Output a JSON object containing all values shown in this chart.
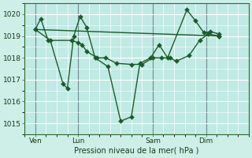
{
  "xlabel": "Pression niveau de la mer( hPa )",
  "ylim": [
    1014.5,
    1020.5
  ],
  "xlim": [
    0,
    10.5
  ],
  "bg_color": "#ceeee8",
  "plot_bg_color": "#c0eae4",
  "grid_color": "#ffffff",
  "line_color": "#1a5c2a",
  "day_labels": [
    "Ven",
    "Lun",
    "Sam",
    "Dim"
  ],
  "yticks": [
    1015,
    1016,
    1017,
    1018,
    1019,
    1020
  ],
  "series1_x": [
    0.5,
    0.75,
    1.1,
    2.2,
    2.5,
    2.7,
    2.9,
    3.4,
    3.8,
    4.3,
    5.0,
    5.5,
    6.0,
    6.4,
    6.8,
    7.1,
    7.7,
    8.2,
    8.6,
    9.1
  ],
  "series1_y": [
    1019.3,
    1019.8,
    1018.8,
    1018.8,
    1018.7,
    1018.6,
    1018.3,
    1018.0,
    1018.0,
    1017.75,
    1017.7,
    1017.7,
    1018.0,
    1018.0,
    1018.0,
    1017.85,
    1018.1,
    1018.8,
    1019.1,
    1019.0
  ],
  "series2_x": [
    0.5,
    1.2,
    1.8,
    2.0,
    2.3,
    2.6,
    2.9,
    3.3,
    3.9,
    4.5,
    5.0,
    5.4,
    5.9,
    6.3,
    6.7,
    7.6,
    8.0,
    8.4,
    8.7,
    9.1
  ],
  "series2_y": [
    1019.3,
    1018.8,
    1016.8,
    1016.6,
    1019.0,
    1019.9,
    1019.4,
    1018.0,
    1017.6,
    1015.1,
    1015.3,
    1017.75,
    1018.0,
    1018.6,
    1018.0,
    1020.2,
    1019.7,
    1019.15,
    1019.2,
    1019.1
  ],
  "series3_x": [
    0.5,
    9.1
  ],
  "series3_y": [
    1019.3,
    1019.0
  ],
  "ven_x": 0.5,
  "lun_x": 2.5,
  "sam_x": 6.0,
  "dim_x": 8.5
}
